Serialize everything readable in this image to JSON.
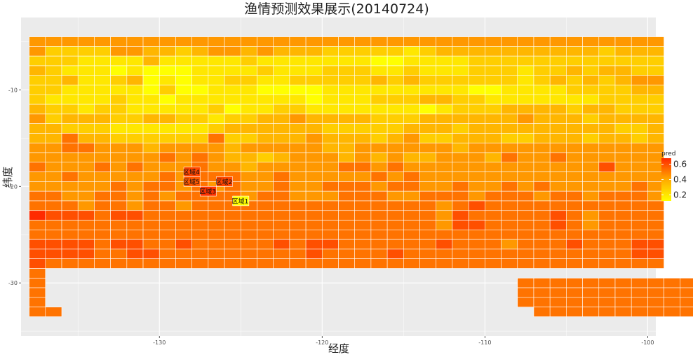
{
  "chart_data": {
    "type": "heatmap",
    "title": "渔情预测效果展示(20140724)",
    "xlabel": "经度",
    "ylabel": "纬度",
    "xlim": [
      -138.5,
      -99.5
    ],
    "ylim": [
      -35.5,
      -2.5
    ],
    "x_ticks": [
      -130,
      -120,
      -110,
      -100
    ],
    "x_tick_labels": [
      "-130",
      "-120",
      "-110",
      "-100"
    ],
    "y_ticks": [
      -10,
      -20,
      -30
    ],
    "y_tick_labels": [
      "-10",
      "-20",
      "-30"
    ],
    "x_start": -137.5,
    "y_start": -5,
    "cell_step": 1,
    "grid": true,
    "legend": {
      "title": "pred",
      "position": "right",
      "ticks": [
        "0.6",
        "0.4",
        "0.2"
      ],
      "tick_values": [
        0.6,
        0.4,
        0.2
      ],
      "range": [
        0.12,
        0.68
      ]
    },
    "colors": {
      "low": "#ffff00",
      "mid": "#ffaa00",
      "high": "#ff2a00",
      "panel": "#ebebeb",
      "grid": "#ffffff"
    },
    "rows": [
      "555555555555555555555555555555555555555",
      "533335544345545444333332344444444443444",
      "333222242222232222222112222333333333333",
      "432221211122223222333223222333233434433",
      "334223412122332233333434333333234343455",
      "332222213112221111222222222112222333344",
      "322223221222222221222333443322222223333",
      "433233222223122332222222123334444344333",
      "534443344332334454444333444444544434444",
      "443332222223444444333334443444444444334",
      "446443333336334445444345334443344434434",
      "556655545555455555445555554555555555555",
      "555555556565443455545454455546556555555",
      "655565655565545555566565555555555557555",
      "556555556566655655555656555555555555555",
      "555556566565655655666566556556565555565",
      "665566565666656655566655666566656656665",
      "666566566566666666666666656766666666666",
      "877767766666666666666666657666667656666",
      "666666666666666666666666657766667656666",
      "666666666666666666666666666666666666666",
      "777767766766666767766666676665666766677",
      "777766776666666667666676666666666666677",
      "766666666666666666666666666666666666666",
      "6..............................................",
      "6.............................66666666666666..6",
      "6.............................666666666666...6",
      "6.............................66666666666.....",
      "66.............................66666666666....."
    ],
    "cell_values": "digits 1-8 map linearly to pred 0.12-0.68; '.' = no data",
    "regions": [
      {
        "label": "区域1",
        "lon": -125,
        "lat": -21.5,
        "pred": 0.12
      },
      {
        "label": "区域2",
        "lon": -126,
        "lat": -19.5,
        "pred": 0.62
      },
      {
        "label": "区域3",
        "lon": -127,
        "lat": -20.5,
        "pred": 0.66
      },
      {
        "label": "区域4",
        "lon": -128,
        "lat": -18.5,
        "pred": 0.62
      },
      {
        "label": "区域5",
        "lon": -128,
        "lat": -19.5,
        "pred": 0.58
      }
    ]
  }
}
